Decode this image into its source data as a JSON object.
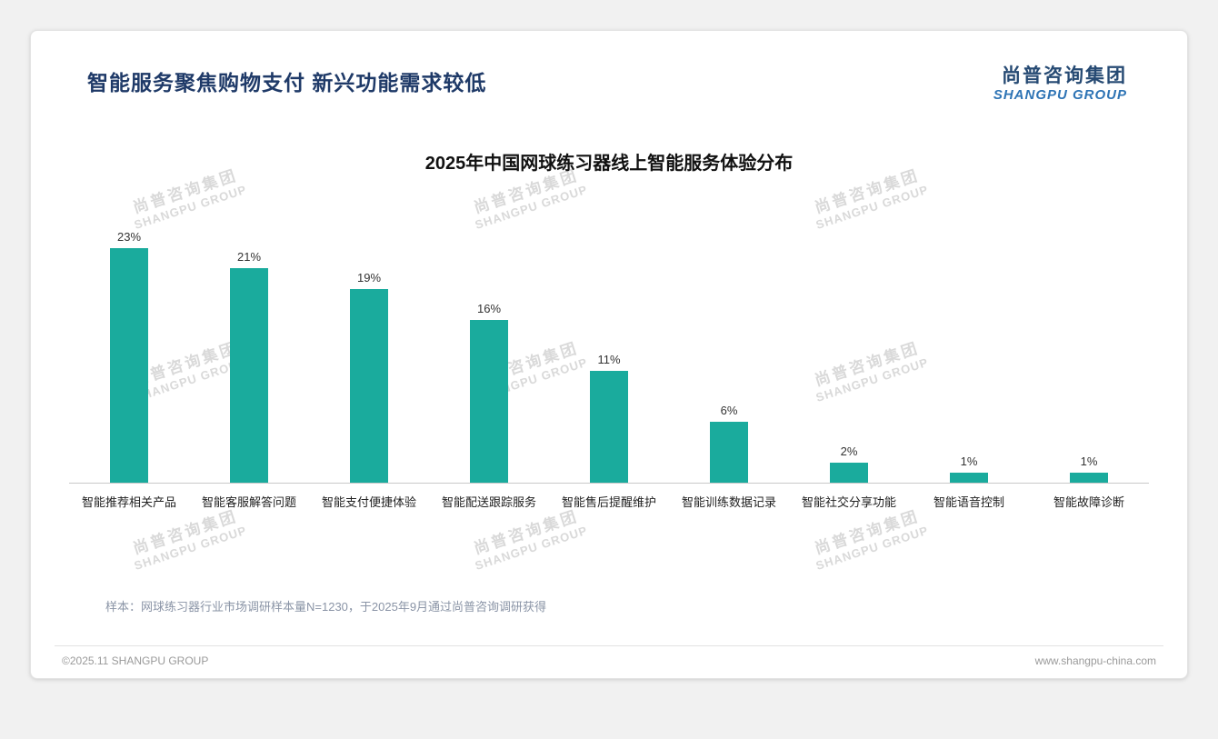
{
  "page": {
    "title": "智能服务聚焦购物支付 新兴功能需求较低",
    "logo": {
      "cn": "尚普咨询集团",
      "en": "SHANGPU GROUP"
    },
    "watermark": {
      "line1": "尚普咨询集团",
      "line2": "SHANGPU GROUP"
    },
    "note": "样本：网球练习器行业市场调研样本量N=1230，于2025年9月通过尚普咨询调研获得",
    "footer": {
      "left": "©2025.11 SHANGPU GROUP",
      "right": "www.shangpu-china.com"
    }
  },
  "colors": {
    "bar": "#1aab9d",
    "title": "#1f3a68",
    "logo_cn": "#264a73",
    "logo_en": "#2e74b5",
    "watermark": "#d9d9d9"
  },
  "chart_data": {
    "type": "bar",
    "title": "2025年中国网球练习器线上智能服务体验分布",
    "categories": [
      "智能推荐相关产品",
      "智能客服解答问题",
      "智能支付便捷体验",
      "智能配送跟踪服务",
      "智能售后提醒维护",
      "智能训练数据记录",
      "智能社交分享功能",
      "智能语音控制",
      "智能故障诊断"
    ],
    "values": [
      23,
      21,
      19,
      16,
      11,
      6,
      2,
      1,
      1
    ],
    "unit": "%",
    "xlabel": "",
    "ylabel": "",
    "ylim": [
      0,
      25
    ],
    "grid": false,
    "legend": "none",
    "data_labels": true
  }
}
